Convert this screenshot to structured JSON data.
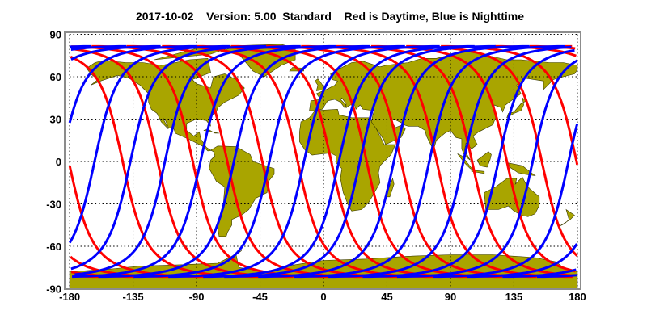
{
  "chart_data": {
    "type": "line",
    "title": {
      "date": "2017-10-02",
      "version": "Version: 5.00",
      "mode": "Standard",
      "legend_note": "Red is Daytime, Blue is Nighttime"
    },
    "xlim": [
      -180,
      180
    ],
    "ylim": [
      -90,
      90
    ],
    "xticks": [
      "-180",
      "-135",
      "-90",
      "-45",
      "0",
      "45",
      "90",
      "135",
      "180"
    ],
    "yticks": [
      "90",
      "60",
      "30",
      "0",
      "-30",
      "-60",
      "-90"
    ],
    "grid": true,
    "max_track_latitude": 81.5,
    "colors": {
      "land": "#a9a500",
      "frame": "#8c8c8c",
      "grid": "#000000"
    },
    "series": [
      {
        "color": "#ff0000",
        "pass": "descending",
        "equator_crossing_longitudes": [
          -142.4,
          -117.6,
          -92.7,
          -68.2,
          -43.4,
          -18.3,
          5.5,
          30.6,
          55.0,
          80.3,
          105.3,
          130.0,
          154.8,
          179.4
        ]
      },
      {
        "color": "#0000ff",
        "pass": "ascending",
        "equator_crossing_longitudes": [
          -162.3,
          -136.9,
          -112.4,
          -87.2,
          -63.5,
          -38.4,
          -13.8,
          10.9,
          25.8,
          49.9,
          75.0,
          99.2,
          124.0,
          148.3,
          173.7
        ]
      }
    ]
  }
}
